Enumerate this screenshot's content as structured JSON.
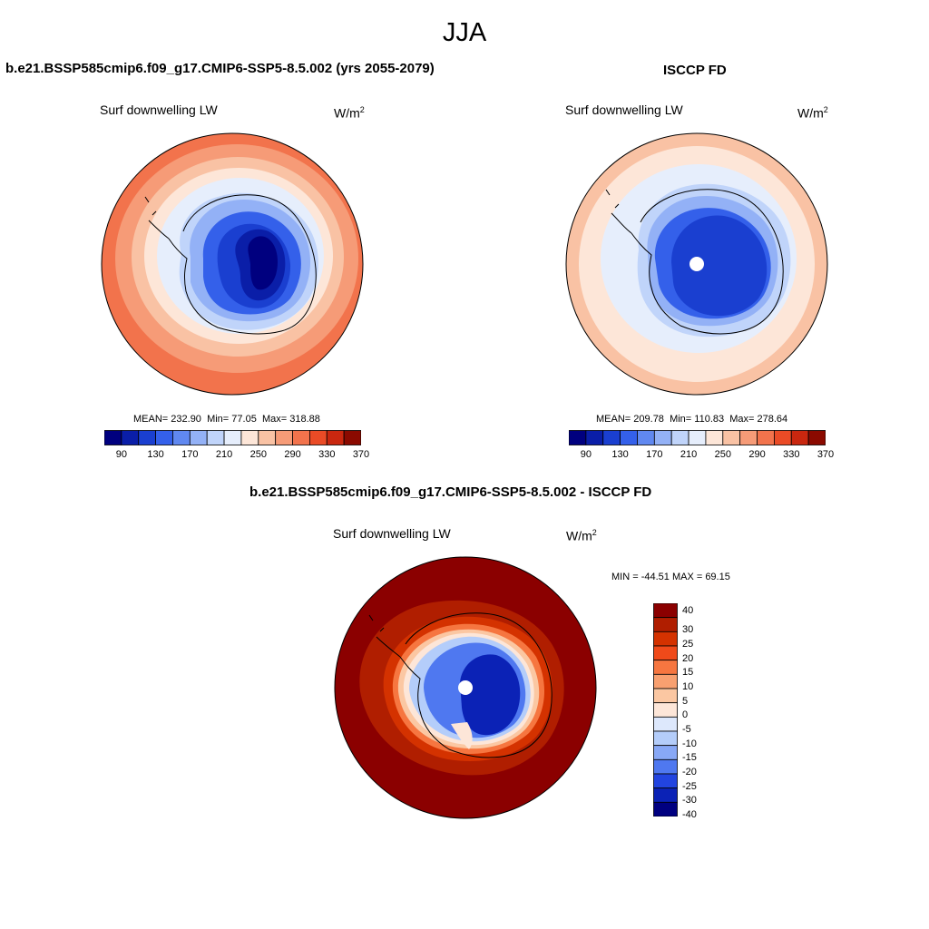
{
  "figure": {
    "season": "JJA"
  },
  "panels": [
    {
      "title": "b.e21.BSSP585cmip6.f09_g17.CMIP6-SSP5-8.5.002 (yrs 2055-2079)",
      "variable": "Surf downwelling LW",
      "units_base": "W/m",
      "units_exp": "2",
      "stats": {
        "mean_label": "MEAN=",
        "mean": "232.90",
        "min_label": "Min=",
        "min": "77.05",
        "max_label": "Max=",
        "max": "318.88"
      },
      "colorbar_ticks": [
        "90",
        "130",
        "170",
        "210",
        "250",
        "290",
        "330",
        "370"
      ]
    },
    {
      "title": "ISCCP FD",
      "variable": "Surf downwelling LW",
      "units_base": "W/m",
      "units_exp": "2",
      "stats": {
        "mean_label": "MEAN=",
        "mean": "209.78",
        "min_label": "Min=",
        "min": "110.83",
        "max_label": "Max=",
        "max": "278.64"
      },
      "colorbar_ticks": [
        "90",
        "130",
        "170",
        "210",
        "250",
        "290",
        "330",
        "370"
      ]
    },
    {
      "title": "b.e21.BSSP585cmip6.f09_g17.CMIP6-SSP5-8.5.002 - ISCCP FD",
      "variable": "Surf downwelling LW",
      "units_base": "W/m",
      "units_exp": "2",
      "stats_text": "MIN = -44.51 MAX =  69.15",
      "colorbar_ticks": [
        "40",
        "30",
        "25",
        "20",
        "15",
        "10",
        "5",
        "0",
        "-5",
        "-10",
        "-15",
        "-20",
        "-25",
        "-30",
        "-40"
      ]
    }
  ],
  "colors": {
    "abs_scale": [
      "#00007f",
      "#0a1ea8",
      "#1a3fd0",
      "#3460ea",
      "#6088f0",
      "#93b1f6",
      "#c0d4fa",
      "#e6eefc",
      "#fde6d8",
      "#f9c2a4",
      "#f69b77",
      "#f2734c",
      "#ea4b26",
      "#c9270f",
      "#8b0a00"
    ],
    "diff_scale": [
      "#8b0000",
      "#b01e00",
      "#d43200",
      "#f04a1a",
      "#f67640",
      "#f8a070",
      "#fbc7a2",
      "#fde6d8",
      "#dde8fc",
      "#b4cdfa",
      "#88a8f6",
      "#4f78f0",
      "#2244e0",
      "#0b22b6",
      "#000080"
    ],
    "coast": "#000000",
    "missing": "#ffffff"
  }
}
